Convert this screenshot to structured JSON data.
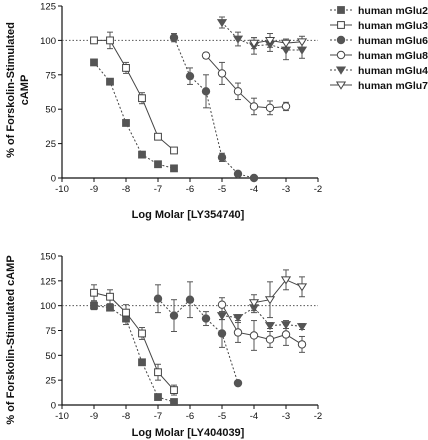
{
  "chart_data": [
    {
      "type": "scatter",
      "xlabel": "Log Molar [LY354740]",
      "ylabel": "% of Forskolin-Stimulated\ncAMP",
      "xlim": [
        -10,
        -2
      ],
      "ylim": [
        0,
        125
      ],
      "xticks": [
        "-10",
        "-9",
        "-8",
        "-7",
        "-6",
        "-5",
        "-4",
        "-3",
        "-2"
      ],
      "yticks": [
        "0",
        "25",
        "50",
        "75",
        "100",
        "125"
      ],
      "reference_line": 100,
      "legend_position": "right",
      "series": [
        {
          "name": "human mGlu2",
          "marker": "square-filled",
          "line": "dotted",
          "x": [
            -9,
            -8.5,
            -8,
            -7.5,
            -7,
            -6.5
          ],
          "y": [
            84,
            70,
            40,
            17,
            10,
            7
          ],
          "err": [
            2,
            2,
            2,
            2,
            2,
            2
          ]
        },
        {
          "name": "human mGlu3",
          "marker": "square-open",
          "line": "solid",
          "x": [
            -9,
            -8.5,
            -8,
            -7.5,
            -7,
            -6.5
          ],
          "y": [
            100,
            100,
            80,
            58,
            30,
            20
          ],
          "err": [
            2,
            6,
            4,
            4,
            2,
            2
          ]
        },
        {
          "name": "human mGlu6",
          "marker": "circle-filled",
          "line": "dotted",
          "x": [
            -6.5,
            -6,
            -5.5,
            -5,
            -4.5,
            -4
          ],
          "y": [
            102,
            74,
            63,
            15,
            3,
            0
          ],
          "err": [
            3,
            6,
            12,
            3,
            1,
            1
          ]
        },
        {
          "name": "human mGlu8",
          "marker": "circle-open",
          "line": "solid",
          "x": [
            -5.5,
            -5,
            -4.5,
            -4,
            -3.5,
            -3
          ],
          "y": [
            89,
            76,
            63,
            52,
            51,
            52
          ],
          "err": [
            2,
            8,
            6,
            6,
            5,
            3
          ]
        },
        {
          "name": "human mGlu4",
          "marker": "triangle-down-filled",
          "line": "dotted",
          "x": [
            -5,
            -4.5,
            -4,
            -3.5,
            -3,
            -2.5
          ],
          "y": [
            113,
            101,
            96,
            97,
            93,
            93
          ],
          "err": [
            4,
            5,
            6,
            5,
            7,
            6
          ]
        },
        {
          "name": "human mGlu7",
          "marker": "triangle-down-open",
          "line": "solid",
          "x": [
            -4,
            -3.5,
            -3,
            -2.5
          ],
          "y": [
            98,
            100,
            98,
            99
          ],
          "err": [
            4,
            5,
            3,
            4
          ]
        }
      ]
    },
    {
      "type": "scatter",
      "xlabel": "Log Molar [LY404039]",
      "ylabel": "% of Forskolin-Stimulated cAMP",
      "xlim": [
        -10,
        -2
      ],
      "ylim": [
        0,
        150
      ],
      "xticks": [
        "-10",
        "-9",
        "-8",
        "-7",
        "-6",
        "-5",
        "-4",
        "-3",
        "-2"
      ],
      "yticks": [
        "0",
        "25",
        "50",
        "75",
        "100",
        "125",
        "150"
      ],
      "reference_line": 100,
      "series": [
        {
          "name": "human mGlu2",
          "marker": "square-filled",
          "line": "dotted",
          "x": [
            -9,
            -8.5,
            -8,
            -7.5,
            -7,
            -6.5
          ],
          "y": [
            100,
            98,
            87,
            43,
            8,
            3
          ],
          "err": [
            4,
            3,
            6,
            3,
            2,
            1
          ]
        },
        {
          "name": "human mGlu3",
          "marker": "square-open",
          "line": "solid",
          "x": [
            -9,
            -8.5,
            -8,
            -7.5,
            -7,
            -6.5
          ],
          "y": [
            113,
            109,
            93,
            72,
            33,
            15
          ],
          "err": [
            8,
            7,
            8,
            6,
            8,
            5
          ]
        },
        {
          "name": "human mGlu6",
          "marker": "circle-filled",
          "line": "dotted",
          "x": [
            -7,
            -6.5,
            -6,
            -5.5,
            -5,
            -4.5
          ],
          "y": [
            107,
            90,
            106,
            87,
            72,
            22
          ],
          "err": [
            14,
            16,
            18,
            7,
            14,
            2
          ]
        },
        {
          "name": "human mGlu8",
          "marker": "circle-open",
          "line": "solid",
          "x": [
            -5,
            -4.5,
            -4,
            -3.5,
            -3,
            -2.5
          ],
          "y": [
            101,
            73,
            70,
            66,
            71,
            61
          ],
          "err": [
            7,
            10,
            15,
            8,
            11,
            8
          ]
        },
        {
          "name": "human mGlu4",
          "marker": "triangle-down-filled",
          "line": "dotted",
          "x": [
            -5,
            -4.5,
            -4,
            -3.5,
            -3,
            -2.5
          ],
          "y": [
            90,
            88,
            98,
            80,
            81,
            79
          ],
          "err": [
            4,
            3,
            5,
            3,
            4,
            3
          ]
        },
        {
          "name": "human mGlu7",
          "marker": "triangle-down-open",
          "line": "solid",
          "x": [
            -4,
            -3.5,
            -3,
            -2.5
          ],
          "y": [
            103,
            106,
            126,
            119
          ],
          "err": [
            8,
            18,
            10,
            10
          ]
        }
      ]
    }
  ]
}
